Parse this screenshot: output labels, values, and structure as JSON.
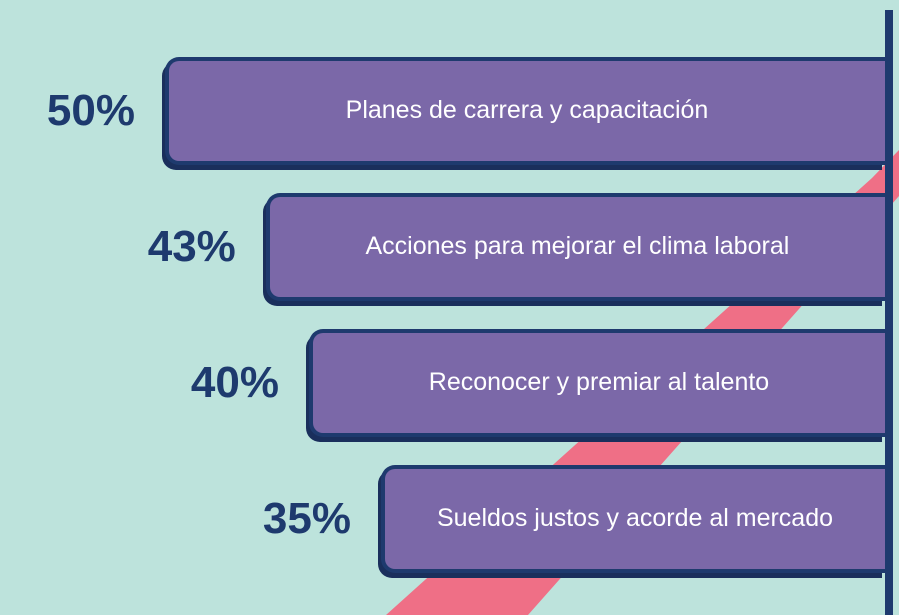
{
  "chart_data": {
    "type": "bar",
    "orientation": "horizontal",
    "categories": [
      "Planes de carrera y capacitación",
      "Acciones para mejorar el clima laboral",
      "Reconocer y premiar al talento",
      "Sueldos justos y acorde al mercado"
    ],
    "values": [
      50,
      43,
      40,
      35
    ],
    "value_labels": [
      "50%",
      "43%",
      "40%",
      "35%"
    ],
    "color": "#7b68a8"
  }
}
